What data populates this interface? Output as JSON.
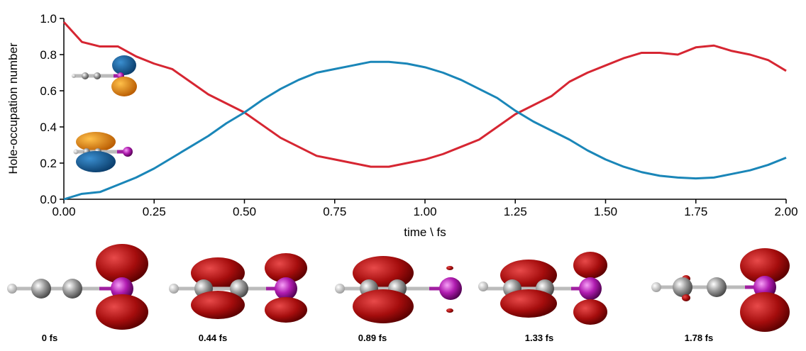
{
  "chart_data": {
    "type": "line",
    "xlabel": "time \\ fs",
    "ylabel": "Hole-occupation number",
    "x": [
      0,
      0.05,
      0.1,
      0.15,
      0.2,
      0.25,
      0.3,
      0.35,
      0.4,
      0.45,
      0.5,
      0.55,
      0.6,
      0.65,
      0.7,
      0.75,
      0.8,
      0.85,
      0.9,
      0.95,
      1.0,
      1.05,
      1.1,
      1.15,
      1.2,
      1.25,
      1.3,
      1.35,
      1.4,
      1.45,
      1.5,
      1.55,
      1.6,
      1.65,
      1.7,
      1.75,
      1.8,
      1.85,
      1.9,
      1.95,
      2.0
    ],
    "series": [
      {
        "color": "#d62632",
        "values": [
          0.98,
          0.87,
          0.845,
          0.845,
          0.79,
          0.75,
          0.72,
          0.65,
          0.58,
          0.53,
          0.48,
          0.41,
          0.34,
          0.29,
          0.24,
          0.22,
          0.2,
          0.18,
          0.18,
          0.2,
          0.22,
          0.25,
          0.29,
          0.33,
          0.4,
          0.47,
          0.52,
          0.57,
          0.65,
          0.7,
          0.74,
          0.78,
          0.81,
          0.81,
          0.8,
          0.84,
          0.85,
          0.82,
          0.8,
          0.77,
          0.71
        ]
      },
      {
        "color": "#1a86b8",
        "values": [
          0.0,
          0.03,
          0.04,
          0.08,
          0.12,
          0.17,
          0.23,
          0.29,
          0.35,
          0.42,
          0.48,
          0.55,
          0.61,
          0.66,
          0.7,
          0.72,
          0.74,
          0.76,
          0.76,
          0.75,
          0.73,
          0.7,
          0.66,
          0.61,
          0.56,
          0.49,
          0.43,
          0.38,
          0.33,
          0.27,
          0.22,
          0.18,
          0.15,
          0.13,
          0.12,
          0.115,
          0.12,
          0.14,
          0.16,
          0.19,
          0.23
        ]
      }
    ],
    "xlim": [
      0,
      2
    ],
    "ylim": [
      0,
      1
    ],
    "xticks": [
      {
        "value": 0,
        "label": "0.00"
      },
      {
        "value": 0.25,
        "label": "0.25"
      },
      {
        "value": 0.5,
        "label": "0.50"
      },
      {
        "value": 0.75,
        "label": "0.75"
      },
      {
        "value": 1,
        "label": "1.00"
      },
      {
        "value": 1.25,
        "label": "1.25"
      },
      {
        "value": 1.5,
        "label": "1.50"
      },
      {
        "value": 1.75,
        "label": "1.75"
      },
      {
        "value": 2,
        "label": "2.00"
      }
    ],
    "yticks": [
      {
        "value": 0,
        "label": "0.0"
      },
      {
        "value": 0.2,
        "label": "0.2"
      },
      {
        "value": 0.4,
        "label": "0.4"
      },
      {
        "value": 0.6,
        "label": "0.6"
      },
      {
        "value": 0.8,
        "label": "0.8"
      },
      {
        "value": 1,
        "label": "1.0"
      }
    ],
    "annotations": [
      "0 fs",
      "0.44 fs",
      "0.89 fs",
      "1.33 fs",
      "1.78 fs"
    ]
  }
}
